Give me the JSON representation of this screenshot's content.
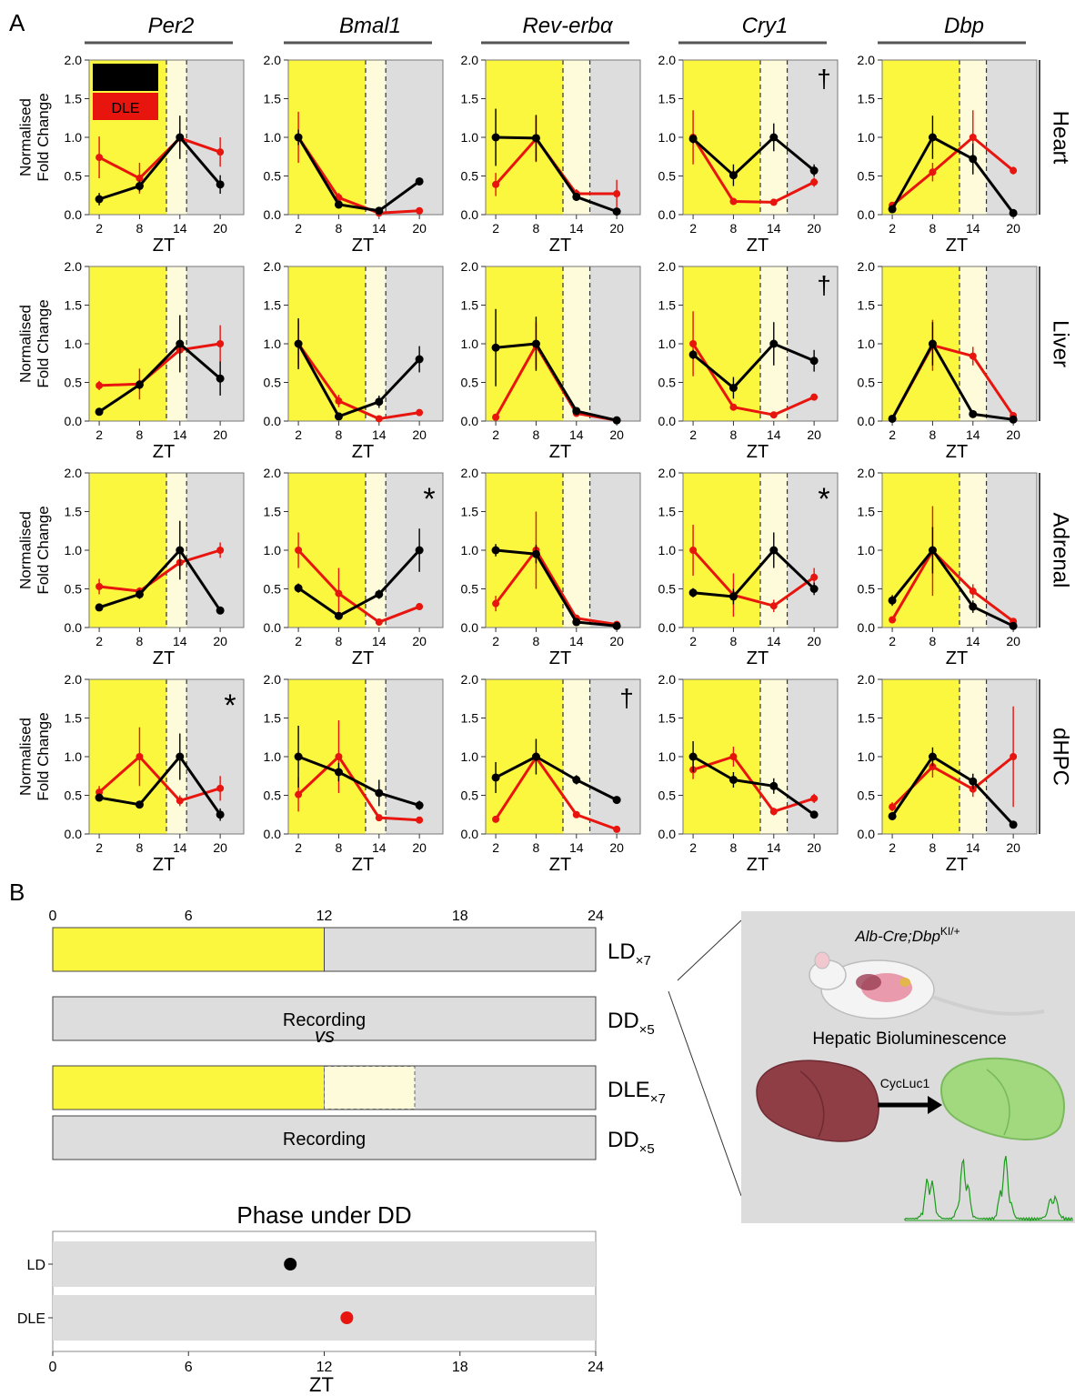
{
  "panel_labels": {
    "a": "A",
    "b": "B"
  },
  "colors": {
    "ld": "#000000",
    "dle": "#e8140e",
    "light": "#fbf73f",
    "extended": "#fdfbd9",
    "dark": "#dddddd"
  },
  "legend": {
    "ld": "LD",
    "dle": "DLE"
  },
  "genes": [
    "Per2",
    "Bmal1",
    "Rev-erbα",
    "Cry1",
    "Dbp"
  ],
  "tissues": [
    "Heart",
    "Liver",
    "Adrenal",
    "dHPC"
  ],
  "y_axis_label": [
    "Normalised",
    "Fold Change"
  ],
  "x_axis_label": "ZT",
  "x_ticks": [
    2,
    8,
    14,
    20
  ],
  "y_ticks": [
    "0.0",
    "0.5",
    "1.0",
    "1.5",
    "2.0"
  ],
  "chart_data": [
    {
      "type": "line",
      "tissue": "Heart",
      "gene": "Per2",
      "x": [
        2,
        8,
        14,
        20
      ],
      "ylim": [
        0,
        2
      ],
      "mark": "",
      "series": [
        {
          "name": "LD",
          "values": [
            0.2,
            0.37,
            1.0,
            0.39
          ],
          "err": [
            0.08,
            0.07,
            0.28,
            0.12
          ]
        },
        {
          "name": "DLE",
          "values": [
            0.74,
            0.47,
            0.99,
            0.81
          ],
          "err": [
            0.27,
            0.2,
            0.12,
            0.19
          ]
        }
      ]
    },
    {
      "type": "line",
      "tissue": "Heart",
      "gene": "Bmal1",
      "x": [
        2,
        8,
        14,
        20
      ],
      "ylim": [
        0,
        2
      ],
      "mark": "",
      "series": [
        {
          "name": "LD",
          "values": [
            1.0,
            0.13,
            0.05,
            0.43
          ],
          "err": [
            0.1,
            0.05,
            0.03,
            0.05
          ]
        },
        {
          "name": "DLE",
          "values": [
            1.0,
            0.22,
            0.02,
            0.05
          ],
          "err": [
            0.33,
            0.06,
            0.02,
            0.02
          ]
        }
      ]
    },
    {
      "type": "line",
      "tissue": "Heart",
      "gene": "Rev-erbα",
      "x": [
        2,
        8,
        14,
        20
      ],
      "ylim": [
        0,
        2
      ],
      "mark": "",
      "series": [
        {
          "name": "LD",
          "values": [
            1.0,
            0.99,
            0.23,
            0.04
          ],
          "err": [
            0.37,
            0.3,
            0.05,
            0.02
          ]
        },
        {
          "name": "DLE",
          "values": [
            0.39,
            0.98,
            0.27,
            0.27
          ],
          "err": [
            0.15,
            0.3,
            0.06,
            0.18
          ]
        }
      ]
    },
    {
      "type": "line",
      "tissue": "Heart",
      "gene": "Cry1",
      "x": [
        2,
        8,
        14,
        20
      ],
      "ylim": [
        0,
        2
      ],
      "mark": "†",
      "series": [
        {
          "name": "LD",
          "values": [
            0.98,
            0.51,
            1.0,
            0.57
          ],
          "err": [
            0.06,
            0.14,
            0.18,
            0.08
          ]
        },
        {
          "name": "DLE",
          "values": [
            1.0,
            0.17,
            0.16,
            0.42
          ],
          "err": [
            0.35,
            0.02,
            0.02,
            0.06
          ]
        }
      ]
    },
    {
      "type": "line",
      "tissue": "Heart",
      "gene": "Dbp",
      "x": [
        2,
        8,
        14,
        20
      ],
      "ylim": [
        0,
        2
      ],
      "mark": "",
      "series": [
        {
          "name": "LD",
          "values": [
            0.07,
            1.0,
            0.72,
            0.02
          ],
          "err": [
            0.02,
            0.28,
            0.2,
            0.01
          ]
        },
        {
          "name": "DLE",
          "values": [
            0.12,
            0.55,
            1.0,
            0.57
          ],
          "err": [
            0.04,
            0.12,
            0.35,
            0.05
          ]
        }
      ]
    },
    {
      "type": "line",
      "tissue": "Liver",
      "gene": "Per2",
      "x": [
        2,
        8,
        14,
        20
      ],
      "ylim": [
        0,
        2
      ],
      "mark": "",
      "series": [
        {
          "name": "LD",
          "values": [
            0.12,
            0.47,
            1.0,
            0.55
          ],
          "err": [
            0.03,
            0.06,
            0.37,
            0.22
          ]
        },
        {
          "name": "DLE",
          "values": [
            0.46,
            0.48,
            0.92,
            1.0
          ],
          "err": [
            0.06,
            0.2,
            0.1,
            0.24
          ]
        }
      ]
    },
    {
      "type": "line",
      "tissue": "Liver",
      "gene": "Bmal1",
      "x": [
        2,
        8,
        14,
        20
      ],
      "ylim": [
        0,
        2
      ],
      "mark": "",
      "series": [
        {
          "name": "LD",
          "values": [
            1.0,
            0.06,
            0.25,
            0.8
          ],
          "err": [
            0.33,
            0.03,
            0.08,
            0.17
          ]
        },
        {
          "name": "DLE",
          "values": [
            1.0,
            0.26,
            0.03,
            0.11
          ],
          "err": [
            0.3,
            0.08,
            0.02,
            0.03
          ]
        }
      ]
    },
    {
      "type": "line",
      "tissue": "Liver",
      "gene": "Rev-erbα",
      "x": [
        2,
        8,
        14,
        20
      ],
      "ylim": [
        0,
        2
      ],
      "mark": "",
      "series": [
        {
          "name": "LD",
          "values": [
            0.95,
            1.0,
            0.13,
            0.01
          ],
          "err": [
            0.5,
            0.35,
            0.05,
            0.01
          ]
        },
        {
          "name": "DLE",
          "values": [
            0.05,
            0.98,
            0.1,
            0.01
          ],
          "err": [
            0.03,
            0.3,
            0.04,
            0.01
          ]
        }
      ]
    },
    {
      "type": "line",
      "tissue": "Liver",
      "gene": "Cry1",
      "x": [
        2,
        8,
        14,
        20
      ],
      "ylim": [
        0,
        2
      ],
      "mark": "†",
      "series": [
        {
          "name": "LD",
          "values": [
            0.86,
            0.43,
            1.0,
            0.78
          ],
          "err": [
            0.06,
            0.14,
            0.28,
            0.14
          ]
        },
        {
          "name": "DLE",
          "values": [
            1.0,
            0.18,
            0.08,
            0.31
          ],
          "err": [
            0.42,
            0.03,
            0.02,
            0.03
          ]
        }
      ]
    },
    {
      "type": "line",
      "tissue": "Liver",
      "gene": "Dbp",
      "x": [
        2,
        8,
        14,
        20
      ],
      "ylim": [
        0,
        2
      ],
      "mark": "",
      "series": [
        {
          "name": "LD",
          "values": [
            0.03,
            1.0,
            0.09,
            0.02
          ],
          "err": [
            0.01,
            0.28,
            0.03,
            0.01
          ]
        },
        {
          "name": "DLE",
          "values": [
            0.03,
            0.98,
            0.84,
            0.07
          ],
          "err": [
            0.01,
            0.33,
            0.12,
            0.03
          ]
        }
      ]
    },
    {
      "type": "line",
      "tissue": "Adrenal",
      "gene": "Per2",
      "x": [
        2,
        8,
        14,
        20
      ],
      "ylim": [
        0,
        2
      ],
      "mark": "",
      "series": [
        {
          "name": "LD",
          "values": [
            0.26,
            0.43,
            1.0,
            0.22
          ],
          "err": [
            0.04,
            0.06,
            0.38,
            0.03
          ]
        },
        {
          "name": "DLE",
          "values": [
            0.53,
            0.47,
            0.84,
            1.0
          ],
          "err": [
            0.1,
            0.05,
            0.08,
            0.1
          ]
        }
      ]
    },
    {
      "type": "line",
      "tissue": "Adrenal",
      "gene": "Bmal1",
      "x": [
        2,
        8,
        14,
        20
      ],
      "ylim": [
        0,
        2
      ],
      "mark": "*",
      "series": [
        {
          "name": "LD",
          "values": [
            0.51,
            0.15,
            0.43,
            1.0
          ],
          "err": [
            0.06,
            0.04,
            0.06,
            0.28
          ]
        },
        {
          "name": "DLE",
          "values": [
            1.0,
            0.44,
            0.07,
            0.27
          ],
          "err": [
            0.23,
            0.33,
            0.02,
            0.03
          ]
        }
      ]
    },
    {
      "type": "line",
      "tissue": "Adrenal",
      "gene": "Rev-erbα",
      "x": [
        2,
        8,
        14,
        20
      ],
      "ylim": [
        0,
        2
      ],
      "mark": "",
      "series": [
        {
          "name": "LD",
          "values": [
            1.0,
            0.95,
            0.07,
            0.02
          ],
          "err": [
            0.08,
            0.12,
            0.03,
            0.01
          ]
        },
        {
          "name": "DLE",
          "values": [
            0.31,
            1.0,
            0.12,
            0.04
          ],
          "err": [
            0.1,
            0.5,
            0.04,
            0.02
          ]
        }
      ]
    },
    {
      "type": "line",
      "tissue": "Adrenal",
      "gene": "Cry1",
      "x": [
        2,
        8,
        14,
        20
      ],
      "ylim": [
        0,
        2
      ],
      "mark": "*",
      "series": [
        {
          "name": "LD",
          "values": [
            0.45,
            0.4,
            1.0,
            0.5
          ],
          "err": [
            0.06,
            0.1,
            0.23,
            0.08
          ]
        },
        {
          "name": "DLE",
          "values": [
            1.0,
            0.42,
            0.28,
            0.65
          ],
          "err": [
            0.33,
            0.28,
            0.08,
            0.12
          ]
        }
      ]
    },
    {
      "type": "line",
      "tissue": "Adrenal",
      "gene": "Dbp",
      "x": [
        2,
        8,
        14,
        20
      ],
      "ylim": [
        0,
        2
      ],
      "mark": "",
      "series": [
        {
          "name": "LD",
          "values": [
            0.35,
            1.0,
            0.27,
            0.02
          ],
          "err": [
            0.07,
            0.3,
            0.08,
            0.01
          ]
        },
        {
          "name": "DLE",
          "values": [
            0.1,
            0.99,
            0.47,
            0.08
          ],
          "err": [
            0.03,
            0.58,
            0.09,
            0.03
          ]
        }
      ]
    },
    {
      "type": "line",
      "tissue": "dHPC",
      "gene": "Per2",
      "x": [
        2,
        8,
        14,
        20
      ],
      "ylim": [
        0,
        2
      ],
      "mark": "*",
      "series": [
        {
          "name": "LD",
          "values": [
            0.47,
            0.38,
            1.0,
            0.25
          ],
          "err": [
            0.05,
            0.04,
            0.3,
            0.08
          ]
        },
        {
          "name": "DLE",
          "values": [
            0.54,
            1.0,
            0.43,
            0.59
          ],
          "err": [
            0.08,
            0.38,
            0.07,
            0.16
          ]
        }
      ]
    },
    {
      "type": "line",
      "tissue": "dHPC",
      "gene": "Bmal1",
      "x": [
        2,
        8,
        14,
        20
      ],
      "ylim": [
        0,
        2
      ],
      "mark": "",
      "series": [
        {
          "name": "LD",
          "values": [
            1.0,
            0.8,
            0.53,
            0.37
          ],
          "err": [
            0.4,
            0.12,
            0.17,
            0.06
          ]
        },
        {
          "name": "DLE",
          "values": [
            0.51,
            1.0,
            0.21,
            0.18
          ],
          "err": [
            0.22,
            0.47,
            0.04,
            0.03
          ]
        }
      ]
    },
    {
      "type": "line",
      "tissue": "dHPC",
      "gene": "Rev-erbα",
      "x": [
        2,
        8,
        14,
        20
      ],
      "ylim": [
        0,
        2
      ],
      "mark": "†",
      "series": [
        {
          "name": "LD",
          "values": [
            0.73,
            1.0,
            0.7,
            0.44
          ],
          "err": [
            0.2,
            0.23,
            0.06,
            0.04
          ]
        },
        {
          "name": "DLE",
          "values": [
            0.19,
            0.99,
            0.25,
            0.06
          ],
          "err": [
            0.04,
            0.08,
            0.04,
            0.02
          ]
        }
      ]
    },
    {
      "type": "line",
      "tissue": "dHPC",
      "gene": "Cry1",
      "x": [
        2,
        8,
        14,
        20
      ],
      "ylim": [
        0,
        2
      ],
      "mark": "",
      "series": [
        {
          "name": "LD",
          "values": [
            1.0,
            0.7,
            0.62,
            0.25
          ],
          "err": [
            0.2,
            0.1,
            0.1,
            0.04
          ]
        },
        {
          "name": "DLE",
          "values": [
            0.83,
            1.0,
            0.29,
            0.46
          ],
          "err": [
            0.12,
            0.13,
            0.05,
            0.06
          ]
        }
      ]
    },
    {
      "type": "line",
      "tissue": "dHPC",
      "gene": "Dbp",
      "x": [
        2,
        8,
        14,
        20
      ],
      "ylim": [
        0,
        2
      ],
      "mark": "",
      "series": [
        {
          "name": "LD",
          "values": [
            0.23,
            1.0,
            0.68,
            0.12
          ],
          "err": [
            0.05,
            0.12,
            0.1,
            0.02
          ]
        },
        {
          "name": "DLE",
          "values": [
            0.35,
            0.87,
            0.58,
            1.0
          ],
          "err": [
            0.06,
            0.14,
            0.1,
            0.65
          ]
        }
      ]
    },
    {
      "type": "scatter",
      "title": "Phase under DD",
      "xlabel": "ZT",
      "xlim": [
        0,
        24
      ],
      "x_ticks": [
        0,
        6,
        12,
        18,
        24
      ],
      "categories": [
        "LD",
        "DLE"
      ],
      "values": [
        10.5,
        13.0
      ]
    }
  ],
  "protocol": {
    "ticks": [
      "0",
      "6",
      "12",
      "18",
      "24"
    ],
    "bars": [
      {
        "label": "LD",
        "sub": "×7",
        "text": "",
        "light_end": 12,
        "extended_end": 12
      },
      {
        "label": "DD",
        "sub": "×5",
        "text": "Recording",
        "light_end": 0,
        "extended_end": 0
      },
      {
        "label": "DLE",
        "sub": "×7",
        "text": "",
        "light_end": 12,
        "extended_end": 16
      },
      {
        "label": "DD",
        "sub": "×5",
        "text": "Recording",
        "light_end": 0,
        "extended_end": 0
      }
    ],
    "vs": "vs"
  },
  "inset": {
    "genotype_a": "Alb-Cre",
    "genotype_b": ";Dbp",
    "genotype_sup": "KI/+",
    "title": "Hepatic Bioluminescence",
    "arrow_label": "CycLuc1"
  }
}
